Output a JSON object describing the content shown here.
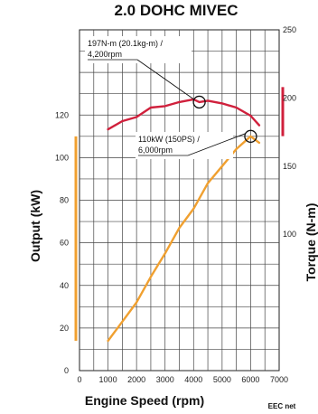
{
  "chart_data": {
    "type": "line",
    "title": "2.0 DOHC MIVEC",
    "xlabel": "Engine Speed (rpm)",
    "ylabel_left": "Output (kW)",
    "ylabel_right": "Torque (N-m)",
    "xlim": [
      0,
      7000
    ],
    "ylim_left": [
      0,
      160
    ],
    "ylim_right": [
      0,
      250
    ],
    "x_ticks": [
      "0",
      "1000",
      "2000",
      "3000",
      "4000",
      "5000",
      "6000",
      "7000"
    ],
    "y_left_ticks": [
      "0",
      "20",
      "40",
      "60",
      "80",
      "100",
      "120"
    ],
    "y_right_ticks": [
      "100",
      "150",
      "200",
      "250"
    ],
    "grid": true,
    "series": [
      {
        "name": "Torque",
        "axis": "right",
        "color": "#d0203c",
        "x": [
          1000,
          1500,
          2000,
          2500,
          3000,
          3500,
          4000,
          4200,
          4500,
          5000,
          5500,
          6000,
          6300
        ],
        "y": [
          177,
          183,
          186,
          193,
          194,
          197,
          199,
          197,
          198,
          196,
          193,
          187,
          180
        ]
      },
      {
        "name": "Output",
        "axis": "left",
        "color": "#f0a030",
        "x": [
          1000,
          1500,
          2000,
          2500,
          3000,
          3500,
          4000,
          4500,
          5000,
          5500,
          6000,
          6300
        ],
        "y": [
          14,
          23,
          32,
          44,
          55,
          67,
          76,
          88,
          96,
          104,
          110,
          107
        ]
      }
    ],
    "annotations": [
      {
        "line1": "197N-m (20.1kg-m) /",
        "line2": "4,200rpm",
        "x": 4200,
        "y": 197,
        "axis": "right"
      },
      {
        "line1": "110kW (150PS) /",
        "line2": "6,000rpm",
        "x": 6000,
        "y": 110,
        "axis": "left"
      }
    ],
    "credit": "EEC net"
  }
}
